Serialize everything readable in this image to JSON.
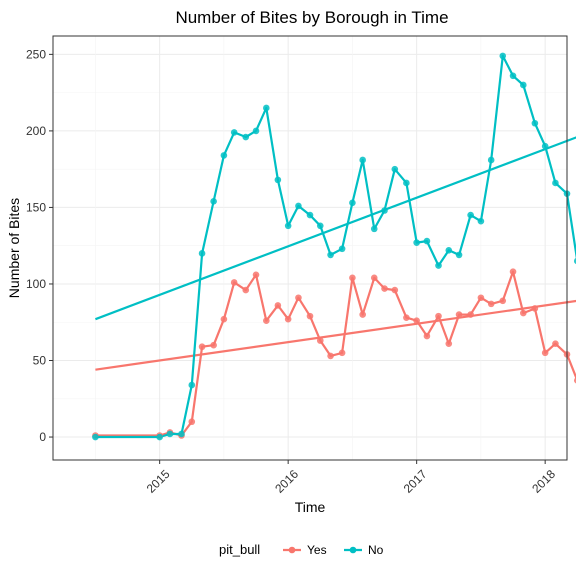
{
  "chart_data": {
    "type": "line",
    "title": "Number of Bites by Borough in Time",
    "xlabel": "Time",
    "ylabel": "Number of Bites",
    "xlim": [
      2014.17,
      2018.17
    ],
    "ylim": [
      -15,
      262
    ],
    "x_ticks": [
      2015,
      2016,
      2017,
      2018
    ],
    "x_tick_labels": [
      "2015",
      "2016",
      "2017",
      "2018"
    ],
    "y_ticks": [
      0,
      50,
      100,
      150,
      200,
      250
    ],
    "y_tick_labels": [
      "0",
      "50",
      "100",
      "150",
      "200",
      "250"
    ],
    "grid": true,
    "legend": {
      "title": "pit_bull",
      "position": "bottom"
    },
    "series": [
      {
        "name": "Yes",
        "color": "#F8766D",
        "points": [
          [
            2014.5,
            1
          ],
          [
            2015.0,
            1
          ],
          [
            2015.08,
            3
          ],
          [
            2015.17,
            1
          ],
          [
            2015.25,
            10
          ],
          [
            2015.33,
            59
          ],
          [
            2015.42,
            60
          ],
          [
            2015.5,
            77
          ],
          [
            2015.58,
            101
          ],
          [
            2015.67,
            96
          ],
          [
            2015.75,
            106
          ],
          [
            2015.83,
            76
          ],
          [
            2015.92,
            86
          ],
          [
            2016.0,
            77
          ],
          [
            2016.08,
            91
          ],
          [
            2016.17,
            79
          ],
          [
            2016.25,
            63
          ],
          [
            2016.33,
            53
          ],
          [
            2016.42,
            55
          ],
          [
            2016.5,
            104
          ],
          [
            2016.58,
            80
          ],
          [
            2016.67,
            104
          ],
          [
            2016.75,
            97
          ],
          [
            2016.83,
            96
          ],
          [
            2016.92,
            78
          ],
          [
            2017.0,
            76
          ],
          [
            2017.08,
            66
          ],
          [
            2017.17,
            79
          ],
          [
            2017.25,
            61
          ],
          [
            2017.33,
            80
          ],
          [
            2017.42,
            80
          ],
          [
            2017.5,
            91
          ],
          [
            2017.58,
            87
          ],
          [
            2017.67,
            89
          ],
          [
            2017.75,
            108
          ],
          [
            2017.83,
            81
          ],
          [
            2017.92,
            84
          ],
          [
            2018.0,
            55
          ],
          [
            2018.08,
            61
          ],
          [
            2018.17,
            54
          ],
          [
            2018.25,
            37
          ]
        ],
        "trend": [
          [
            2014.5,
            44
          ],
          [
            2018.25,
            89
          ]
        ]
      },
      {
        "name": "No",
        "color": "#00BFC4",
        "points": [
          [
            2014.5,
            0
          ],
          [
            2015.0,
            0
          ],
          [
            2015.08,
            2
          ],
          [
            2015.17,
            2
          ],
          [
            2015.25,
            34
          ],
          [
            2015.33,
            120
          ],
          [
            2015.42,
            154
          ],
          [
            2015.5,
            184
          ],
          [
            2015.58,
            199
          ],
          [
            2015.67,
            196
          ],
          [
            2015.75,
            200
          ],
          [
            2015.83,
            215
          ],
          [
            2015.92,
            168
          ],
          [
            2016.0,
            138
          ],
          [
            2016.08,
            151
          ],
          [
            2016.17,
            145
          ],
          [
            2016.25,
            138
          ],
          [
            2016.33,
            119
          ],
          [
            2016.42,
            123
          ],
          [
            2016.5,
            153
          ],
          [
            2016.58,
            181
          ],
          [
            2016.67,
            136
          ],
          [
            2016.75,
            148
          ],
          [
            2016.83,
            175
          ],
          [
            2016.92,
            166
          ],
          [
            2017.0,
            127
          ],
          [
            2017.08,
            128
          ],
          [
            2017.17,
            112
          ],
          [
            2017.25,
            122
          ],
          [
            2017.33,
            119
          ],
          [
            2017.42,
            145
          ],
          [
            2017.5,
            141
          ],
          [
            2017.58,
            181
          ],
          [
            2017.67,
            249
          ],
          [
            2017.75,
            236
          ],
          [
            2017.83,
            230
          ],
          [
            2017.92,
            205
          ],
          [
            2018.0,
            190
          ],
          [
            2018.08,
            166
          ],
          [
            2018.17,
            159
          ],
          [
            2018.25,
            115
          ]
        ],
        "trend": [
          [
            2014.5,
            77
          ],
          [
            2018.25,
            196
          ]
        ]
      }
    ]
  }
}
